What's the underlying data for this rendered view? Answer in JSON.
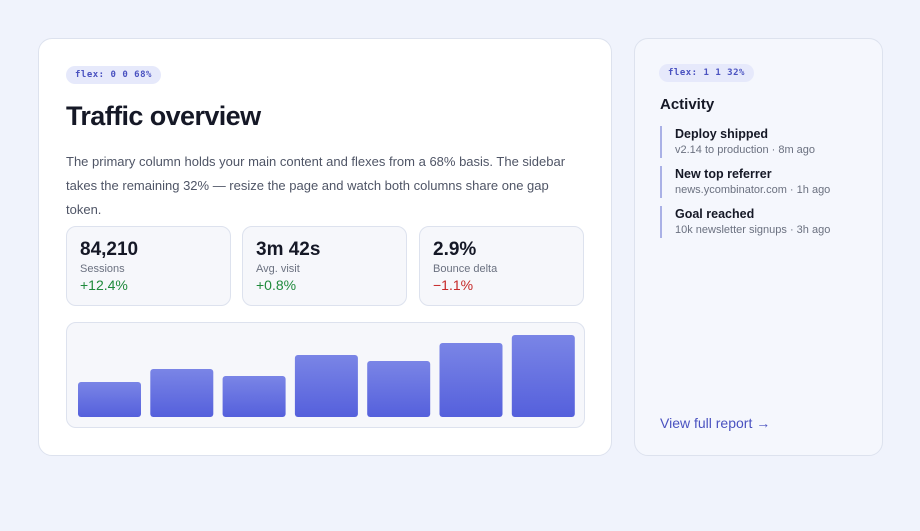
{
  "main": {
    "chip": "flex: 0 0 68%",
    "title": "Traffic overview",
    "description": "The primary column holds your main content and flexes from a 68% basis. The sidebar takes the remaining 32% — resize the page and watch both columns share one gap token.",
    "stats": [
      {
        "value": "84,210",
        "label": "Sessions",
        "delta": "+12.4%",
        "trend": "positive"
      },
      {
        "value": "3m 42s",
        "label": "Avg. visit",
        "delta": "+0.8%",
        "trend": "positive"
      },
      {
        "value": "2.9%",
        "label": "Bounce delta",
        "delta": "−1.1%",
        "trend": "negative"
      }
    ]
  },
  "chart_data": {
    "type": "bar",
    "values": [
      35,
      48,
      41,
      62,
      56,
      74,
      82
    ],
    "ylim": [
      0,
      100
    ],
    "grid": false,
    "bar_color_top": "#7a85e6",
    "bar_color_bottom": "#5560dc"
  },
  "sidebar": {
    "chip": "flex: 1 1 32%",
    "title": "Activity",
    "items": [
      {
        "title": "Deploy shipped",
        "meta": "v2.14 to production · 8m ago"
      },
      {
        "title": "New top referrer",
        "meta": "news.ycombinator.com · 1h ago"
      },
      {
        "title": "Goal reached",
        "meta": "10k newsletter signups · 3h ago"
      }
    ],
    "link_label": "View full report →"
  },
  "colors": {
    "accent": "#4a52c0",
    "positive": "#1f8a3c",
    "negative": "#c62828",
    "background": "#f0f3fc"
  }
}
